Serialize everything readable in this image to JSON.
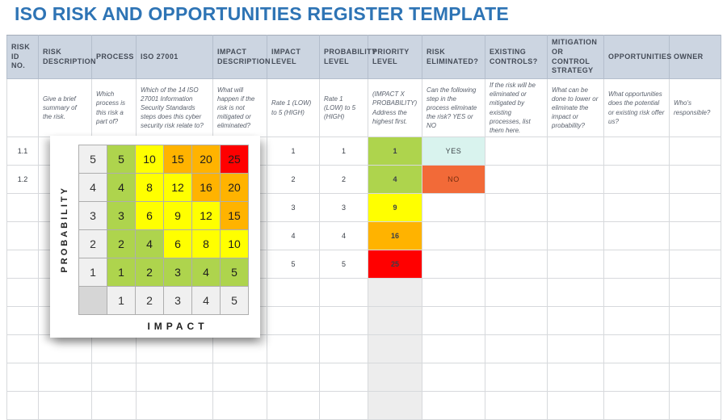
{
  "title": "ISO RISK AND OPPORTUNITIES REGISTER TEMPLATE",
  "palette": {
    "title_blue": "#2e74b5",
    "header_bg": "#ccd5e1",
    "green": "#aed44d",
    "yellow": "#ffff00",
    "orange": "#ffb300",
    "red": "#ff0000",
    "gray": "#ededed",
    "yes_bg": "#d9f3ee",
    "yes_text": "#3f464a",
    "no_bg": "#f26a38",
    "no_text": "#772d10",
    "matrix_header_bg": "#f0f0f0",
    "matrix_corner_bg": "#d6d6d6"
  },
  "table": {
    "columns": [
      {
        "key": "risk_id",
        "label": "RISK ID NO.",
        "desc": ""
      },
      {
        "key": "risk_description",
        "label": "RISK DESCRIPTION",
        "desc": "Give a brief summary of the risk."
      },
      {
        "key": "process",
        "label": "PROCESS",
        "desc": "Which process is this risk a part of?"
      },
      {
        "key": "iso_27001",
        "label": "ISO 27001",
        "desc": "Which of the 14 ISO 27001 Information Security Standards steps does this cyber security risk relate to?"
      },
      {
        "key": "impact_description",
        "label": "IMPACT DESCRIPTION",
        "desc": "What will happen if the risk is not mitigated or eliminated?"
      },
      {
        "key": "impact_level",
        "label": "IMPACT LEVEL",
        "desc": "Rate 1 (LOW) to 5 (HIGH)"
      },
      {
        "key": "probability_level",
        "label": "PROBABILITY LEVEL",
        "desc": "Rate 1 (LOW) to 5 (HIGH)"
      },
      {
        "key": "priority_level",
        "label": "PRIORITY LEVEL",
        "desc": "(IMPACT X PROBABILITY) Address the highest first."
      },
      {
        "key": "risk_eliminated",
        "label": "RISK ELIMINATED?",
        "desc": "Can the following step in the process eliminate the risk? YES or NO"
      },
      {
        "key": "existing_controls",
        "label": "EXISTING CONTROLS?",
        "desc": "If the risk will be eliminated or mitigated by existing processes, list them here."
      },
      {
        "key": "mitigation_or_control_strategy",
        "label": "MITIGATION OR CONTROL STRATEGY",
        "desc": "What can be done to lower or eliminate the impact or probability?"
      },
      {
        "key": "opportunities",
        "label": "OPPORTUNITIES",
        "desc": "What opportunities does the potential or existing risk offer us?"
      },
      {
        "key": "owner",
        "label": "OWNER",
        "desc": "Who's responsible?"
      }
    ],
    "rows": [
      {
        "risk_id": "1.1",
        "impact_level": "1",
        "probability_level": "1",
        "priority_level": "1",
        "priority_color": "green",
        "risk_eliminated": "YES"
      },
      {
        "risk_id": "1.2",
        "impact_level": "2",
        "probability_level": "2",
        "priority_level": "4",
        "priority_color": "green",
        "risk_eliminated": "NO"
      },
      {
        "impact_level": "3",
        "probability_level": "3",
        "priority_level": "9",
        "priority_color": "yellow"
      },
      {
        "impact_level": "4",
        "probability_level": "4",
        "priority_level": "16",
        "priority_color": "orange"
      },
      {
        "impact_level": "5",
        "probability_level": "5",
        "priority_level": "25",
        "priority_color": "red"
      },
      {
        "priority_color": "gray"
      },
      {
        "priority_color": "gray"
      },
      {
        "priority_color": "gray"
      },
      {
        "priority_color": "gray"
      },
      {
        "priority_color": "gray"
      }
    ]
  },
  "matrix": {
    "y_axis_label": "PROBABILITY",
    "x_axis_label": "IMPACT",
    "row_headers": [
      "5",
      "4",
      "3",
      "2",
      "1"
    ],
    "col_headers": [
      "1",
      "2",
      "3",
      "4",
      "5"
    ],
    "cells": [
      [
        {
          "v": "5",
          "c": "green"
        },
        {
          "v": "10",
          "c": "yellow"
        },
        {
          "v": "15",
          "c": "orange"
        },
        {
          "v": "20",
          "c": "orange"
        },
        {
          "v": "25",
          "c": "red"
        }
      ],
      [
        {
          "v": "4",
          "c": "green"
        },
        {
          "v": "8",
          "c": "yellow"
        },
        {
          "v": "12",
          "c": "yellow"
        },
        {
          "v": "16",
          "c": "orange"
        },
        {
          "v": "20",
          "c": "orange"
        }
      ],
      [
        {
          "v": "3",
          "c": "green"
        },
        {
          "v": "6",
          "c": "yellow"
        },
        {
          "v": "9",
          "c": "yellow"
        },
        {
          "v": "12",
          "c": "yellow"
        },
        {
          "v": "15",
          "c": "orange"
        }
      ],
      [
        {
          "v": "2",
          "c": "green"
        },
        {
          "v": "4",
          "c": "green"
        },
        {
          "v": "6",
          "c": "yellow"
        },
        {
          "v": "8",
          "c": "yellow"
        },
        {
          "v": "10",
          "c": "yellow"
        }
      ],
      [
        {
          "v": "1",
          "c": "green"
        },
        {
          "v": "2",
          "c": "green"
        },
        {
          "v": "3",
          "c": "green"
        },
        {
          "v": "4",
          "c": "green"
        },
        {
          "v": "5",
          "c": "green"
        }
      ]
    ]
  }
}
